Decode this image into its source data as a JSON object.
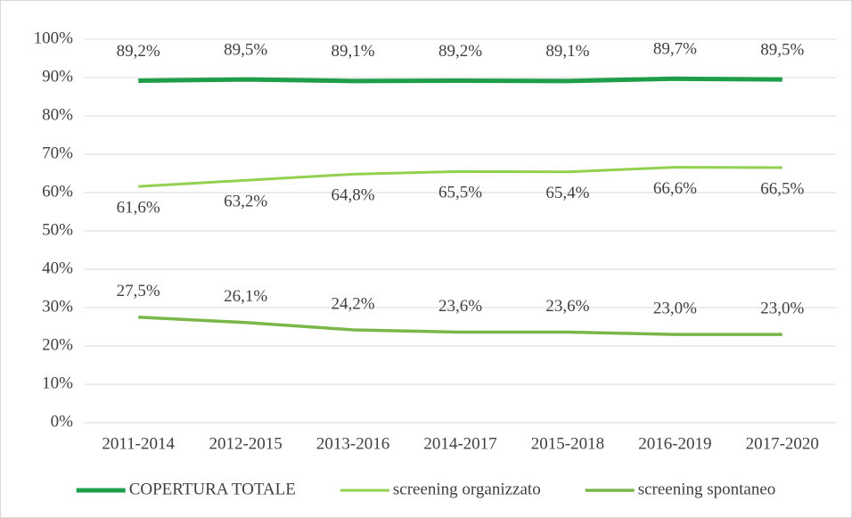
{
  "chart_data": {
    "type": "line",
    "categories": [
      "2011-2014",
      "2012-2015",
      "2013-2016",
      "2014-2017",
      "2015-2018",
      "2016-2019",
      "2017-2020"
    ],
    "series": [
      {
        "name": "COPERTURA TOTALE",
        "color": "#1e9e48",
        "values": [
          89.2,
          89.5,
          89.1,
          89.2,
          89.1,
          89.7,
          89.5
        ],
        "value_labels": [
          "89,2%",
          "89,5%",
          "89,1%",
          "89,2%",
          "89,1%",
          "89,7%",
          "89,5%"
        ]
      },
      {
        "name": "screening organizzato",
        "color": "#92d050",
        "values": [
          61.6,
          63.2,
          64.8,
          65.5,
          65.4,
          66.6,
          66.5
        ],
        "value_labels": [
          "61,6%",
          "63,2%",
          "64,8%",
          "65,5%",
          "65,4%",
          "66,6%",
          "66,5%"
        ]
      },
      {
        "name": "screening spontaneo",
        "color": "#7ab648",
        "values": [
          27.5,
          26.1,
          24.2,
          23.6,
          23.6,
          23.0,
          23.0
        ],
        "value_labels": [
          "27,5%",
          "26,1%",
          "24,2%",
          "23,6%",
          "23,6%",
          "23,0%",
          "23,0%"
        ]
      }
    ],
    "ylim": [
      0,
      100
    ],
    "yticks": [
      {
        "value": 0,
        "label": "0%"
      },
      {
        "value": 10,
        "label": "10%"
      },
      {
        "value": 20,
        "label": "20%"
      },
      {
        "value": 30,
        "label": "30%"
      },
      {
        "value": 40,
        "label": "40%"
      },
      {
        "value": 50,
        "label": "50%"
      },
      {
        "value": 60,
        "label": "60%"
      },
      {
        "value": 70,
        "label": "70%"
      },
      {
        "value": 80,
        "label": "80%"
      },
      {
        "value": 90,
        "label": "90%"
      },
      {
        "value": 100,
        "label": "100%"
      }
    ],
    "grid": true,
    "legend": "bottom"
  }
}
